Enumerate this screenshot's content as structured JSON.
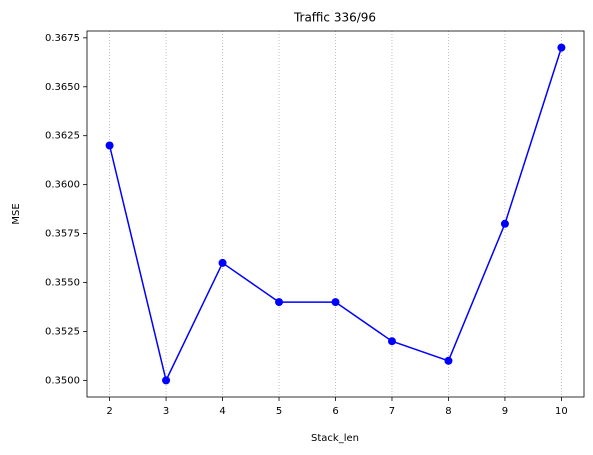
{
  "chart_data": {
    "type": "line",
    "title": "Traffic 336/96",
    "x_label": "Stack_len",
    "y_label": "MSE",
    "x": [
      2,
      3,
      4,
      5,
      6,
      7,
      8,
      9,
      10
    ],
    "series": [
      {
        "name": "MSE",
        "color": "#0000ff",
        "values": [
          0.362,
          0.35,
          0.356,
          0.354,
          0.354,
          0.352,
          0.351,
          0.358,
          0.367
        ]
      }
    ],
    "xlim": [
      1.6,
      10.4
    ],
    "xticks": [
      2,
      3,
      4,
      5,
      6,
      7,
      8,
      9,
      10
    ],
    "ylim": [
      0.34915,
      0.36785
    ],
    "yticks": [
      {
        "value": 0.35,
        "label": "0.3500"
      },
      {
        "value": 0.3525,
        "label": "0.3525"
      },
      {
        "value": 0.355,
        "label": "0.3550"
      },
      {
        "value": 0.3575,
        "label": "0.3575"
      },
      {
        "value": 0.36,
        "label": "0.3600"
      },
      {
        "value": 0.3625,
        "label": "0.3625"
      },
      {
        "value": 0.365,
        "label": "0.3650"
      },
      {
        "value": 0.3675,
        "label": "0.3675"
      }
    ],
    "grid": "x"
  }
}
